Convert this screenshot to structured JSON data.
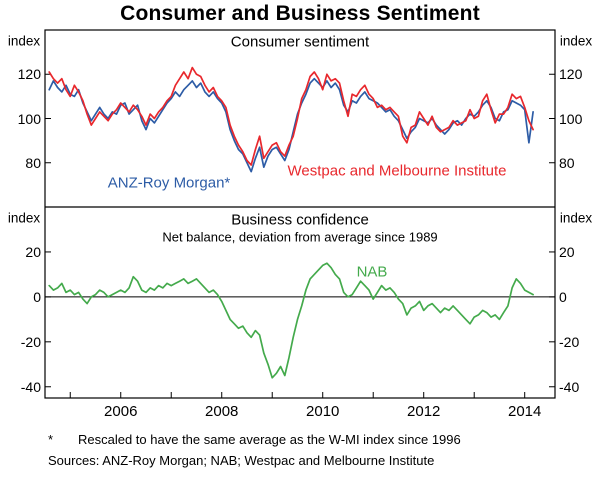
{
  "title": "Consumer and Business Sentiment",
  "footnote": {
    "marker": "*",
    "text": "Rescaled to have the same average as the W-MI index since 1996"
  },
  "sources": "Sources:  ANZ-Roy Morgan; NAB; Westpac and Melbourne Institute",
  "axis_color": "#000000",
  "chart_data": [
    {
      "type": "line",
      "title": "Consumer sentiment",
      "ylabel": "index",
      "ylim": [
        60,
        140
      ],
      "yticks": [
        120,
        100,
        80
      ],
      "xlim": [
        2004.5,
        2014.6
      ],
      "xticks": [
        2006,
        2008,
        2010,
        2012,
        2014
      ],
      "x_start": 2004.583,
      "x_step": 0.083333,
      "series": [
        {
          "name": "ANZ-Roy Morgan*",
          "color": "#2d5ca6",
          "values": [
            113,
            117,
            114,
            112,
            115,
            111,
            110,
            113,
            107,
            103,
            99,
            102,
            105,
            102,
            100,
            103,
            102,
            106,
            107,
            102,
            104,
            106,
            99,
            95,
            100,
            98,
            101,
            104,
            107,
            109,
            112,
            110,
            113,
            115,
            117,
            114,
            116,
            112,
            110,
            112,
            109,
            107,
            103,
            95,
            90,
            86,
            84,
            80,
            76,
            82,
            87,
            78,
            83,
            86,
            87,
            84,
            81,
            86,
            94,
            102,
            107,
            111,
            116,
            118,
            116,
            114,
            117,
            114,
            116,
            113,
            106,
            103,
            108,
            107,
            110,
            112,
            109,
            108,
            107,
            105,
            103,
            104,
            101,
            99,
            95,
            91,
            94,
            96,
            100,
            99,
            98,
            100,
            97,
            95,
            93,
            95,
            98,
            99,
            97,
            100,
            102,
            101,
            103,
            106,
            108,
            105,
            100,
            99,
            103,
            104,
            108,
            107,
            106,
            104,
            89,
            103
          ]
        },
        {
          "name": "Westpac and Melbourne Institute",
          "color": "#e8282d",
          "values": [
            121,
            118,
            116,
            118,
            113,
            110,
            115,
            112,
            108,
            102,
            97,
            100,
            103,
            101,
            99,
            102,
            104,
            107,
            105,
            103,
            106,
            104,
            101,
            97,
            102,
            100,
            103,
            105,
            108,
            110,
            115,
            118,
            121,
            118,
            123,
            120,
            119,
            115,
            112,
            114,
            110,
            108,
            105,
            97,
            92,
            88,
            85,
            81,
            79,
            86,
            92,
            82,
            85,
            88,
            89,
            85,
            83,
            88,
            92,
            100,
            109,
            113,
            119,
            121,
            118,
            113,
            120,
            117,
            118,
            116,
            108,
            101,
            111,
            110,
            113,
            115,
            111,
            109,
            105,
            106,
            104,
            105,
            103,
            101,
            92,
            89,
            96,
            97,
            103,
            100,
            97,
            101,
            96,
            94,
            95,
            96,
            99,
            97,
            98,
            99,
            104,
            100,
            101,
            108,
            111,
            104,
            98,
            102,
            102,
            105,
            111,
            109,
            110,
            105,
            99,
            95
          ]
        }
      ]
    },
    {
      "type": "line",
      "title": "Business confidence",
      "subtitle": "Net balance, deviation from average since 1989",
      "ylabel": "index",
      "ylim": [
        -45,
        40
      ],
      "yticks": [
        20,
        0,
        -20,
        -40
      ],
      "xlim": [
        2004.5,
        2014.6
      ],
      "xticks": [
        2006,
        2008,
        2010,
        2012,
        2014
      ],
      "x_start": 2004.583,
      "x_step": 0.083333,
      "series": [
        {
          "name": "NAB",
          "color": "#44aa4c",
          "values": [
            5,
            3,
            4,
            6,
            2,
            3,
            1,
            2,
            -1,
            -3,
            0,
            1,
            3,
            2,
            0,
            1,
            2,
            3,
            2,
            4,
            9,
            7,
            3,
            2,
            4,
            3,
            5,
            4,
            6,
            5,
            6,
            7,
            8,
            6,
            7,
            8,
            6,
            4,
            2,
            3,
            1,
            -2,
            -6,
            -10,
            -12,
            -14,
            -13,
            -16,
            -18,
            -15,
            -17,
            -25,
            -30,
            -36,
            -34,
            -31,
            -35,
            -27,
            -18,
            -10,
            -4,
            3,
            8,
            10,
            12,
            14,
            15,
            13,
            10,
            8,
            2,
            0,
            1,
            4,
            7,
            5,
            3,
            -1,
            2,
            5,
            3,
            4,
            2,
            -1,
            -3,
            -8,
            -5,
            -4,
            -2,
            -6,
            -4,
            -3,
            -5,
            -7,
            -5,
            -6,
            -4,
            -6,
            -8,
            -10,
            -12,
            -9,
            -8,
            -6,
            -7,
            -9,
            -8,
            -10,
            -7,
            -4,
            4,
            8,
            6,
            3,
            2,
            1
          ]
        }
      ]
    }
  ]
}
